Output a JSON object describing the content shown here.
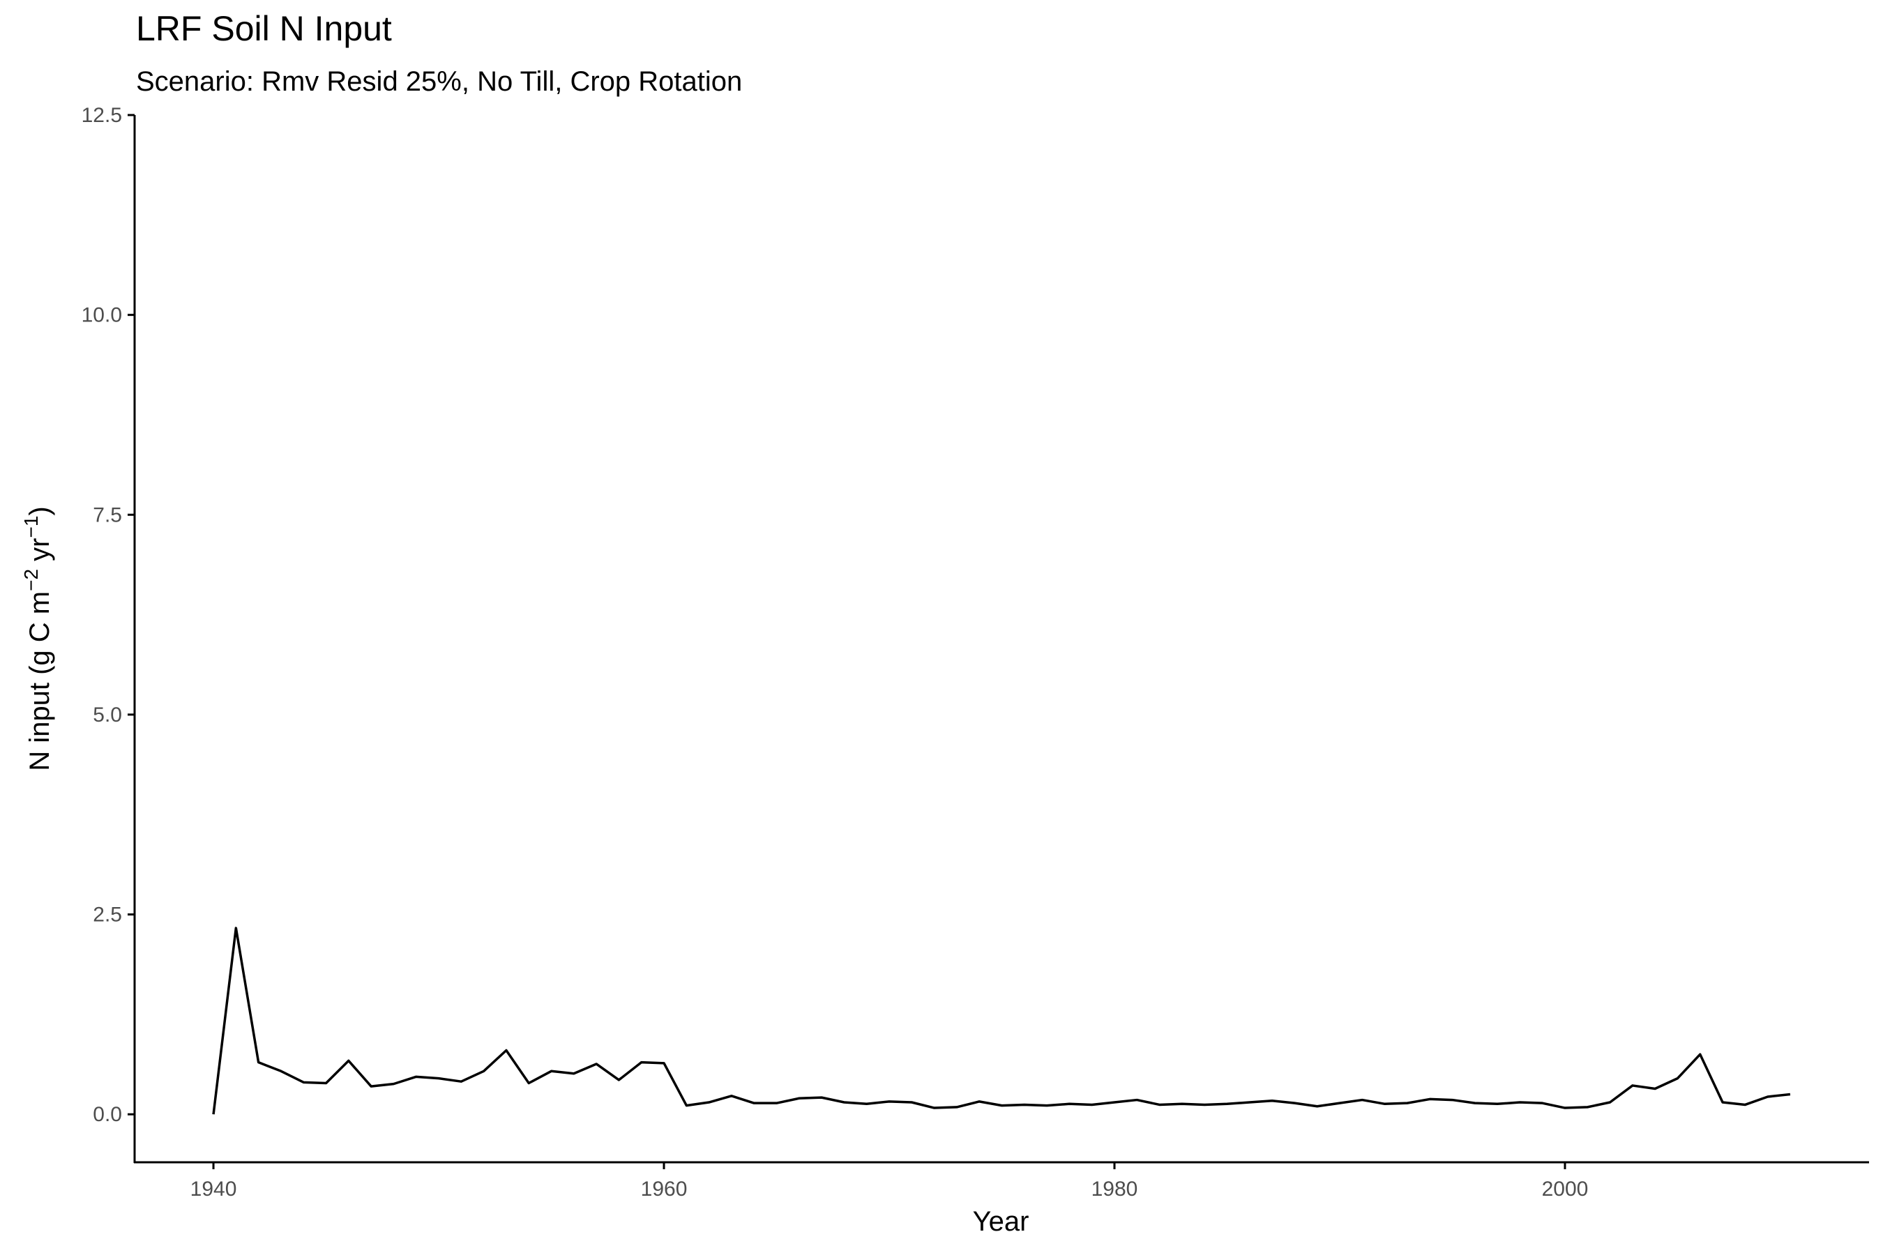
{
  "chart_data": {
    "type": "line",
    "title": "LRF Soil N Input",
    "subtitle": "Scenario: Rmv Resid 25%, No Till, Crop Rotation",
    "xlabel": "Year",
    "ylabel": {
      "prefix": "N input (g C m",
      "sup1": "−2",
      "mid": " yr",
      "sup2": "−1",
      "suffix": ")"
    },
    "xlim": [
      1936.5,
      2013.5
    ],
    "ylim": [
      -0.6,
      12.5
    ],
    "x_ticks": [
      1940,
      1960,
      1980,
      2000
    ],
    "y_ticks": [
      0.0,
      2.5,
      5.0,
      7.5,
      10.0,
      12.5
    ],
    "y_tick_labels": [
      "0.0",
      "2.5",
      "5.0",
      "7.5",
      "10.0",
      "12.5"
    ],
    "x_tick_labels": [
      "1940",
      "1960",
      "1980",
      "2000"
    ],
    "grid": false,
    "legend": "none",
    "line_color": "#000000",
    "x": [
      1940,
      1941,
      1942,
      1943,
      1944,
      1945,
      1946,
      1947,
      1948,
      1949,
      1950,
      1951,
      1952,
      1953,
      1954,
      1955,
      1956,
      1957,
      1958,
      1959,
      1960,
      1961,
      1962,
      1963,
      1964,
      1965,
      1966,
      1967,
      1968,
      1969,
      1970,
      1971,
      1972,
      1973,
      1974,
      1975,
      1976,
      1977,
      1978,
      1979,
      1980,
      1981,
      1982,
      1983,
      1984,
      1985,
      1986,
      1987,
      1988,
      1989,
      1990,
      1991,
      1992,
      1993,
      1994,
      1995,
      1996,
      1997,
      1998,
      1999,
      2000,
      2001,
      2002,
      2003,
      2004,
      2005,
      2006,
      2007,
      2008,
      2009,
      2010
    ],
    "series": [
      {
        "values": [
          0.0,
          2.33,
          0.65,
          0.54,
          0.4,
          0.39,
          0.67,
          0.35,
          0.38,
          0.47,
          0.45,
          0.41,
          0.54,
          0.8,
          0.39,
          0.54,
          0.51,
          0.63,
          0.43,
          0.65,
          0.64,
          0.11,
          0.15,
          0.23,
          0.14,
          0.14,
          0.2,
          0.21,
          0.15,
          0.13,
          0.16,
          0.15,
          0.08,
          0.09,
          0.16,
          0.11,
          0.12,
          0.11,
          0.13,
          0.12,
          0.15,
          0.18,
          0.12,
          0.13,
          0.12,
          0.13,
          0.15,
          0.17,
          0.14,
          0.1,
          0.14,
          0.18,
          0.13,
          0.14,
          0.19,
          0.18,
          0.14,
          0.13,
          0.15,
          0.14,
          0.08,
          0.09,
          0.15,
          0.36,
          0.32,
          0.45,
          0.75,
          0.15,
          0.12,
          0.22,
          0.25
        ]
      }
    ]
  }
}
